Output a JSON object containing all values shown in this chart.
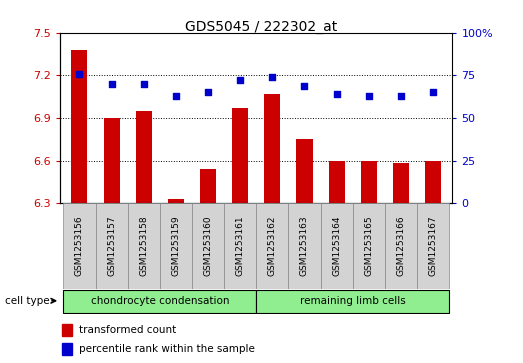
{
  "title": "GDS5045 / 222302_at",
  "samples": [
    "GSM1253156",
    "GSM1253157",
    "GSM1253158",
    "GSM1253159",
    "GSM1253160",
    "GSM1253161",
    "GSM1253162",
    "GSM1253163",
    "GSM1253164",
    "GSM1253165",
    "GSM1253166",
    "GSM1253167"
  ],
  "transformed_count": [
    7.38,
    6.9,
    6.95,
    6.33,
    6.54,
    6.97,
    7.07,
    6.75,
    6.6,
    6.6,
    6.58,
    6.6
  ],
  "percentile_rank": [
    76,
    70,
    70,
    63,
    65,
    72,
    74,
    69,
    64,
    63,
    63,
    65
  ],
  "group1_label": "chondrocyte condensation",
  "group2_label": "remaining limb cells",
  "group1_color": "#90ee90",
  "group2_color": "#90ee90",
  "ylim_left": [
    6.3,
    7.5
  ],
  "ylim_right": [
    0,
    100
  ],
  "yticks_left": [
    6.3,
    6.6,
    6.9,
    7.2,
    7.5
  ],
  "yticks_right": [
    0,
    25,
    50,
    75,
    100
  ],
  "bar_color": "#cc0000",
  "dot_color": "#0000cc",
  "bar_width": 0.5,
  "grid_yticks": [
    6.6,
    6.9,
    7.2
  ],
  "sample_box_color": "#d3d3d3",
  "cell_type_label": "cell type",
  "legend_bar_label": "transformed count",
  "legend_dot_label": "percentile rank within the sample"
}
